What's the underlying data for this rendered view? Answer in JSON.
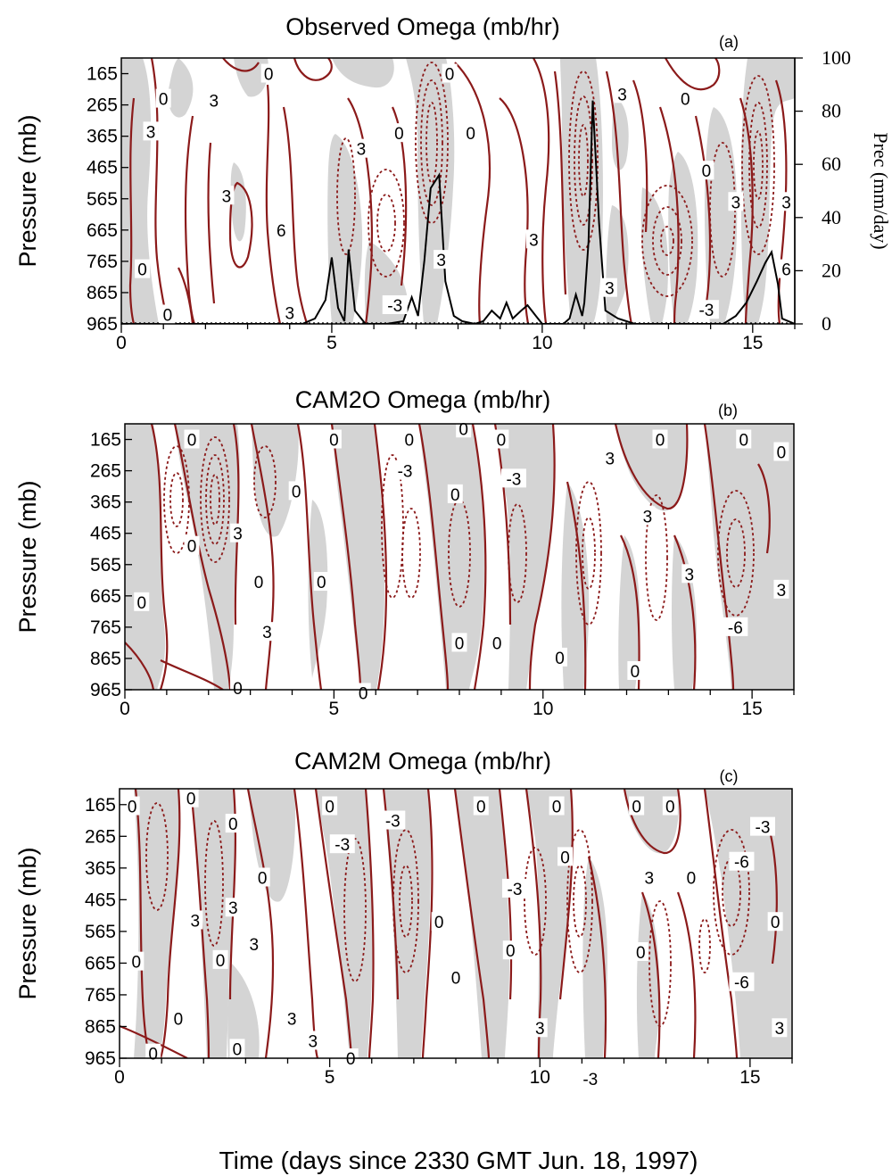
{
  "figure": {
    "xlabel": "Time (days since 2330 GMT Jun. 18, 1997)",
    "colors": {
      "contour": "#8B1A1A",
      "shade": "#d4d4d4",
      "precip": "#000000"
    }
  },
  "chart_data": [
    {
      "type": "contour",
      "title": "Observed Omega (mb/hr)",
      "panel_label": "(a)",
      "ylabel": "Pressure (mb)",
      "x_ticks": [
        "0",
        "5",
        "10",
        "15"
      ],
      "y_ticks": [
        "165",
        "265",
        "365",
        "465",
        "565",
        "665",
        "765",
        "865",
        "965"
      ],
      "xlim": [
        0,
        16
      ],
      "ylim": [
        965,
        115
      ],
      "contour_labels": [
        {
          "t": "0",
          "x": 3.5,
          "p": 165
        },
        {
          "t": "0",
          "x": 7.8,
          "p": 165
        },
        {
          "t": "0",
          "x": 1.0,
          "p": 245
        },
        {
          "t": "3",
          "x": 2.2,
          "p": 250
        },
        {
          "t": "3",
          "x": 11.9,
          "p": 230
        },
        {
          "t": "0",
          "x": 13.4,
          "p": 245
        },
        {
          "t": "3",
          "x": 0.7,
          "p": 350
        },
        {
          "t": "0",
          "x": 6.6,
          "p": 355
        },
        {
          "t": "0",
          "x": 8.3,
          "p": 355
        },
        {
          "t": "3",
          "x": 5.7,
          "p": 405
        },
        {
          "t": "0",
          "x": 13.9,
          "p": 475
        },
        {
          "t": "3",
          "x": 2.5,
          "p": 555
        },
        {
          "t": "3",
          "x": 14.6,
          "p": 575
        },
        {
          "t": "3",
          "x": 15.8,
          "p": 575
        },
        {
          "t": "6",
          "x": 3.8,
          "p": 665
        },
        {
          "t": "3",
          "x": 9.8,
          "p": 695
        },
        {
          "t": "0",
          "x": 0.5,
          "p": 790
        },
        {
          "t": "3",
          "x": 7.6,
          "p": 760
        },
        {
          "t": "6",
          "x": 15.8,
          "p": 790
        },
        {
          "t": "3",
          "x": 11.6,
          "p": 850
        },
        {
          "t": "-3",
          "x": 6.5,
          "p": 905
        },
        {
          "t": "-3",
          "x": 13.9,
          "p": 920
        },
        {
          "t": "0",
          "x": 1.1,
          "p": 935
        },
        {
          "t": "3",
          "x": 4.0,
          "p": 930
        }
      ],
      "precipitation": {
        "ylabel": "Prec (mm/day)",
        "y_ticks": [
          "0",
          "20",
          "40",
          "60",
          "80",
          "100"
        ],
        "ylim": [
          0,
          100
        ],
        "x": [
          0,
          3.5,
          4.3,
          4.6,
          4.85,
          5.0,
          5.15,
          5.3,
          5.4,
          5.55,
          5.8,
          6.3,
          6.7,
          6.9,
          7.05,
          7.2,
          7.35,
          7.55,
          7.7,
          7.9,
          8.1,
          8.4,
          8.6,
          8.8,
          9.0,
          9.15,
          9.3,
          9.5,
          9.65,
          9.85,
          10.0,
          10.2,
          10.5,
          10.65,
          10.8,
          10.95,
          11.0,
          11.1,
          11.2,
          11.35,
          11.5,
          11.8,
          12.2,
          14.3,
          14.6,
          14.85,
          15.1,
          15.3,
          15.45,
          15.6,
          15.7,
          16.0
        ],
        "y": [
          0,
          0,
          0,
          2,
          9,
          25,
          6,
          1,
          28,
          5,
          0,
          0,
          1,
          10,
          3,
          24,
          51,
          56,
          16,
          3,
          1,
          0,
          1,
          5,
          2,
          8,
          2,
          5,
          7,
          3,
          0,
          0,
          0,
          2,
          11,
          3,
          8,
          31,
          84,
          38,
          5,
          2,
          0,
          0,
          3,
          8,
          16,
          23,
          27,
          15,
          2,
          0
        ]
      }
    },
    {
      "type": "contour",
      "title": "CAM2O Omega (mb/hr)",
      "panel_label": "(b)",
      "ylabel": "Pressure (mb)",
      "x_ticks": [
        "0",
        "5",
        "10",
        "15"
      ],
      "y_ticks": [
        "165",
        "265",
        "365",
        "465",
        "565",
        "665",
        "765",
        "865",
        "965"
      ],
      "xlim": [
        0,
        16
      ],
      "ylim": [
        965,
        115
      ],
      "contour_labels": [
        {
          "t": "0",
          "x": 1.6,
          "p": 165
        },
        {
          "t": "0",
          "x": 5.0,
          "p": 165
        },
        {
          "t": "0",
          "x": 6.8,
          "p": 165
        },
        {
          "t": "0",
          "x": 8.1,
          "p": 130
        },
        {
          "t": "0",
          "x": 9.0,
          "p": 165
        },
        {
          "t": "0",
          "x": 12.8,
          "p": 165
        },
        {
          "t": "0",
          "x": 14.8,
          "p": 165
        },
        {
          "t": "0",
          "x": 15.7,
          "p": 205
        },
        {
          "t": "3",
          "x": 11.6,
          "p": 225
        },
        {
          "t": "-3",
          "x": 6.7,
          "p": 265
        },
        {
          "t": "-3",
          "x": 9.3,
          "p": 290
        },
        {
          "t": "0",
          "x": 4.1,
          "p": 330
        },
        {
          "t": "0",
          "x": 7.9,
          "p": 340
        },
        {
          "t": "3",
          "x": 12.5,
          "p": 410
        },
        {
          "t": "3",
          "x": 2.7,
          "p": 465
        },
        {
          "t": "0",
          "x": 1.6,
          "p": 505
        },
        {
          "t": "3",
          "x": 13.5,
          "p": 595
        },
        {
          "t": "0",
          "x": 3.2,
          "p": 620
        },
        {
          "t": "0",
          "x": 4.7,
          "p": 620
        },
        {
          "t": "3",
          "x": 15.7,
          "p": 645
        },
        {
          "t": "0",
          "x": 0.4,
          "p": 685
        },
        {
          "t": "-6",
          "x": 14.6,
          "p": 765
        },
        {
          "t": "3",
          "x": 3.4,
          "p": 780
        },
        {
          "t": "0",
          "x": 8.0,
          "p": 815
        },
        {
          "t": "0",
          "x": 8.9,
          "p": 815
        },
        {
          "t": "0",
          "x": 10.4,
          "p": 862
        },
        {
          "t": "0",
          "x": 12.2,
          "p": 905
        },
        {
          "t": "0",
          "x": 2.7,
          "p": 960
        },
        {
          "t": "0",
          "x": 5.7,
          "p": 975
        }
      ]
    },
    {
      "type": "contour",
      "title": "CAM2M Omega (mb/hr)",
      "panel_label": "(c)",
      "ylabel": "Pressure (mb)",
      "x_ticks": [
        "0",
        "5",
        "10",
        "15"
      ],
      "y_ticks": [
        "165",
        "265",
        "365",
        "465",
        "565",
        "665",
        "765",
        "865",
        "965"
      ],
      "xlim": [
        0,
        16
      ],
      "ylim": [
        965,
        115
      ],
      "contour_labels": [
        {
          "t": "0",
          "x": 0.3,
          "p": 170
        },
        {
          "t": "0",
          "x": 1.7,
          "p": 145
        },
        {
          "t": "0",
          "x": 5.0,
          "p": 170
        },
        {
          "t": "0",
          "x": 8.6,
          "p": 170
        },
        {
          "t": "0",
          "x": 10.4,
          "p": 170
        },
        {
          "t": "0",
          "x": 12.3,
          "p": 170
        },
        {
          "t": "0",
          "x": 13.1,
          "p": 170
        },
        {
          "t": "-3",
          "x": 6.5,
          "p": 215
        },
        {
          "t": "-3",
          "x": 15.3,
          "p": 235
        },
        {
          "t": "0",
          "x": 2.7,
          "p": 225
        },
        {
          "t": "-3",
          "x": 5.3,
          "p": 290
        },
        {
          "t": "0",
          "x": 10.6,
          "p": 330
        },
        {
          "t": "-6",
          "x": 14.8,
          "p": 345
        },
        {
          "t": "0",
          "x": 3.4,
          "p": 395
        },
        {
          "t": "3",
          "x": 12.6,
          "p": 395
        },
        {
          "t": "0",
          "x": 13.6,
          "p": 395
        },
        {
          "t": "-3",
          "x": 9.4,
          "p": 430
        },
        {
          "t": "3",
          "x": 2.7,
          "p": 490
        },
        {
          "t": "3",
          "x": 1.8,
          "p": 530
        },
        {
          "t": "0",
          "x": 7.6,
          "p": 535
        },
        {
          "t": "0",
          "x": 15.6,
          "p": 535
        },
        {
          "t": "3",
          "x": 3.2,
          "p": 605
        },
        {
          "t": "0",
          "x": 0.4,
          "p": 660
        },
        {
          "t": "0",
          "x": 2.4,
          "p": 655
        },
        {
          "t": "0",
          "x": 9.3,
          "p": 625
        },
        {
          "t": "0",
          "x": 12.4,
          "p": 630
        },
        {
          "t": "0",
          "x": 8.0,
          "p": 710
        },
        {
          "t": "-6",
          "x": 14.8,
          "p": 725
        },
        {
          "t": "0",
          "x": 1.4,
          "p": 840
        },
        {
          "t": "3",
          "x": 4.1,
          "p": 840
        },
        {
          "t": "3",
          "x": 10.0,
          "p": 870
        },
        {
          "t": "3",
          "x": 15.7,
          "p": 870
        },
        {
          "t": "3",
          "x": 4.6,
          "p": 910
        },
        {
          "t": "0",
          "x": 0.8,
          "p": 950
        },
        {
          "t": "0",
          "x": 2.8,
          "p": 935
        },
        {
          "t": "0",
          "x": 5.5,
          "p": 965
        },
        {
          "t": "-3",
          "x": 11.2,
          "p": 1030
        }
      ]
    }
  ]
}
